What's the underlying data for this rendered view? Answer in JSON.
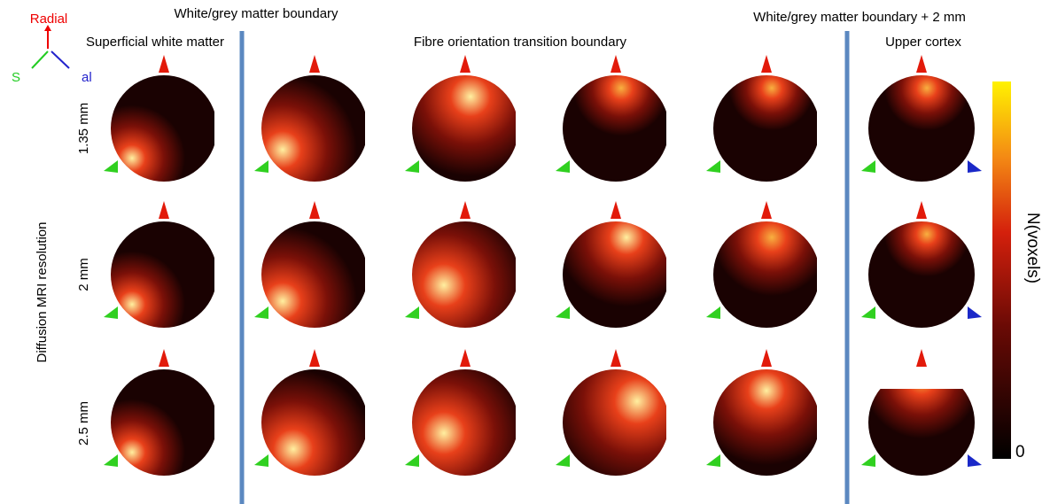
{
  "legend": {
    "radial": "Radial",
    "green": "S",
    "blue": "al"
  },
  "headers": {
    "wgm": "White/grey matter boundary",
    "swm": "Superficial white matter",
    "fotb": "Fibre orientation transition boundary",
    "wgm2": "White/grey matter boundary + 2 mm",
    "upper": "Upper cortex"
  },
  "rows": {
    "title": "Diffusion MRI resolution",
    "labels": [
      "1.35 mm",
      "2 mm",
      "2.5 mm"
    ]
  },
  "colorbar": {
    "title": "N(voxels)",
    "min": "0"
  }
}
